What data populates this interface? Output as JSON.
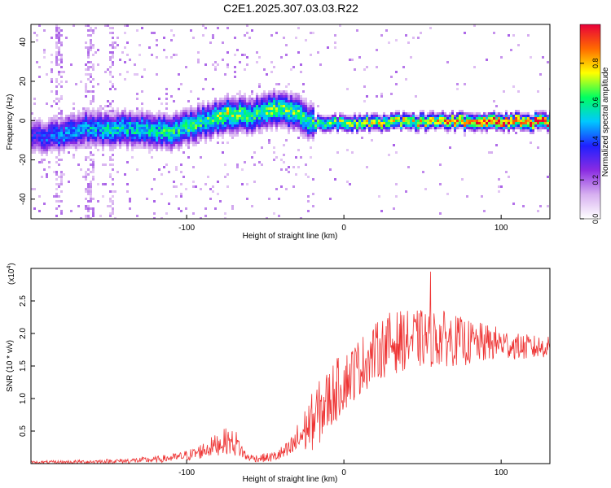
{
  "title": "C2E1.2025.307.03.03.R22",
  "chart_data": [
    {
      "type": "heatmap",
      "name": "spectrogram",
      "xlabel": "Height of straight line (km)",
      "ylabel": "Frequency (Hz)",
      "xlim": [
        -199,
        131
      ],
      "ylim": [
        -50,
        49
      ],
      "xticks": [
        -100,
        0,
        100
      ],
      "xtick_labels": [
        "-100",
        "0",
        "100"
      ],
      "yticks": [
        -40,
        -20,
        0,
        20,
        40
      ],
      "ytick_labels": [
        "-40",
        "-20",
        "0",
        "20",
        "40"
      ],
      "colorbar": {
        "label": "Normalized spectral amplitude",
        "range": [
          0,
          1
        ],
        "ticks": [
          0,
          0.2,
          0.4,
          0.6,
          0.8
        ],
        "tick_labels": [
          "0.0",
          "0.2",
          "0.4",
          "0.6",
          "0.8"
        ],
        "colormap": [
          "#ffffff",
          "#d7b0f0",
          "#8a2be2",
          "#2020ff",
          "#00c8ff",
          "#00ff60",
          "#ffff00",
          "#ff6a00",
          "#e8003a"
        ]
      },
      "ridge": [
        {
          "x": -199,
          "f": -8,
          "amp": 0.35
        },
        {
          "x": -180,
          "f": -7,
          "amp": 0.45
        },
        {
          "x": -165,
          "f": -3,
          "amp": 0.5
        },
        {
          "x": -150,
          "f": -4,
          "amp": 0.55
        },
        {
          "x": -130,
          "f": -4,
          "amp": 0.55
        },
        {
          "x": -110,
          "f": -5,
          "amp": 0.6
        },
        {
          "x": -90,
          "f": 0,
          "amp": 0.6
        },
        {
          "x": -75,
          "f": 4,
          "amp": 0.7
        },
        {
          "x": -60,
          "f": 3,
          "amp": 0.6
        },
        {
          "x": -45,
          "f": 7,
          "amp": 0.65
        },
        {
          "x": -30,
          "f": 4,
          "amp": 0.65
        },
        {
          "x": -20,
          "f": -1,
          "amp": 0.6
        },
        {
          "x": 0,
          "f": -1,
          "amp": 0.7
        },
        {
          "x": 40,
          "f": 0,
          "amp": 0.75
        },
        {
          "x": 60,
          "f": 0,
          "amp": 0.8
        },
        {
          "x": 80,
          "f": 0,
          "amp": 0.9
        },
        {
          "x": 100,
          "f": 0,
          "amp": 0.95
        },
        {
          "x": 131,
          "f": 0,
          "amp": 0.95
        }
      ]
    },
    {
      "type": "line",
      "name": "snr",
      "xlabel": "Height of straight line (km)",
      "ylabel": "SNR (10 * v/v)",
      "multiplier_label": "(x10",
      "multiplier_exp": "4",
      "multiplier_close": ")",
      "color": "#ee3333",
      "xlim": [
        -199,
        131
      ],
      "ylim": [
        0,
        3.0
      ],
      "xticks": [
        -100,
        0,
        100
      ],
      "xtick_labels": [
        "-100",
        "0",
        "100"
      ],
      "yticks": [
        0.5,
        1.0,
        1.5,
        2.0,
        2.5
      ],
      "ytick_labels": [
        "0.5",
        "1.0",
        "1.5",
        "2.0",
        "2.5"
      ],
      "series": [
        {
          "name": "SNR",
          "x": [
            -199,
            -180,
            -160,
            -140,
            -120,
            -105,
            -95,
            -85,
            -75,
            -68,
            -62,
            -55,
            -45,
            -35,
            -28,
            -22,
            -18,
            -12,
            -6,
            0,
            8,
            15,
            22,
            30,
            40,
            50,
            60,
            70,
            80,
            90,
            100,
            110,
            120,
            131
          ],
          "baseline": [
            0.02,
            0.02,
            0.03,
            0.04,
            0.06,
            0.1,
            0.15,
            0.25,
            0.35,
            0.3,
            0.1,
            0.08,
            0.1,
            0.2,
            0.4,
            0.6,
            0.7,
            0.9,
            1.1,
            1.25,
            1.45,
            1.6,
            1.75,
            1.85,
            1.9,
            1.92,
            1.93,
            1.9,
            1.85,
            1.85,
            1.85,
            1.8,
            1.78,
            1.8
          ],
          "spread": [
            0.02,
            0.03,
            0.03,
            0.04,
            0.05,
            0.07,
            0.1,
            0.15,
            0.2,
            0.2,
            0.06,
            0.06,
            0.08,
            0.15,
            0.3,
            0.4,
            0.5,
            0.5,
            0.5,
            0.45,
            0.45,
            0.45,
            0.45,
            0.5,
            0.45,
            0.45,
            0.45,
            0.4,
            0.35,
            0.3,
            0.25,
            0.2,
            0.2,
            0.15
          ],
          "peak": {
            "x": 55,
            "y": 2.95
          }
        }
      ]
    }
  ]
}
